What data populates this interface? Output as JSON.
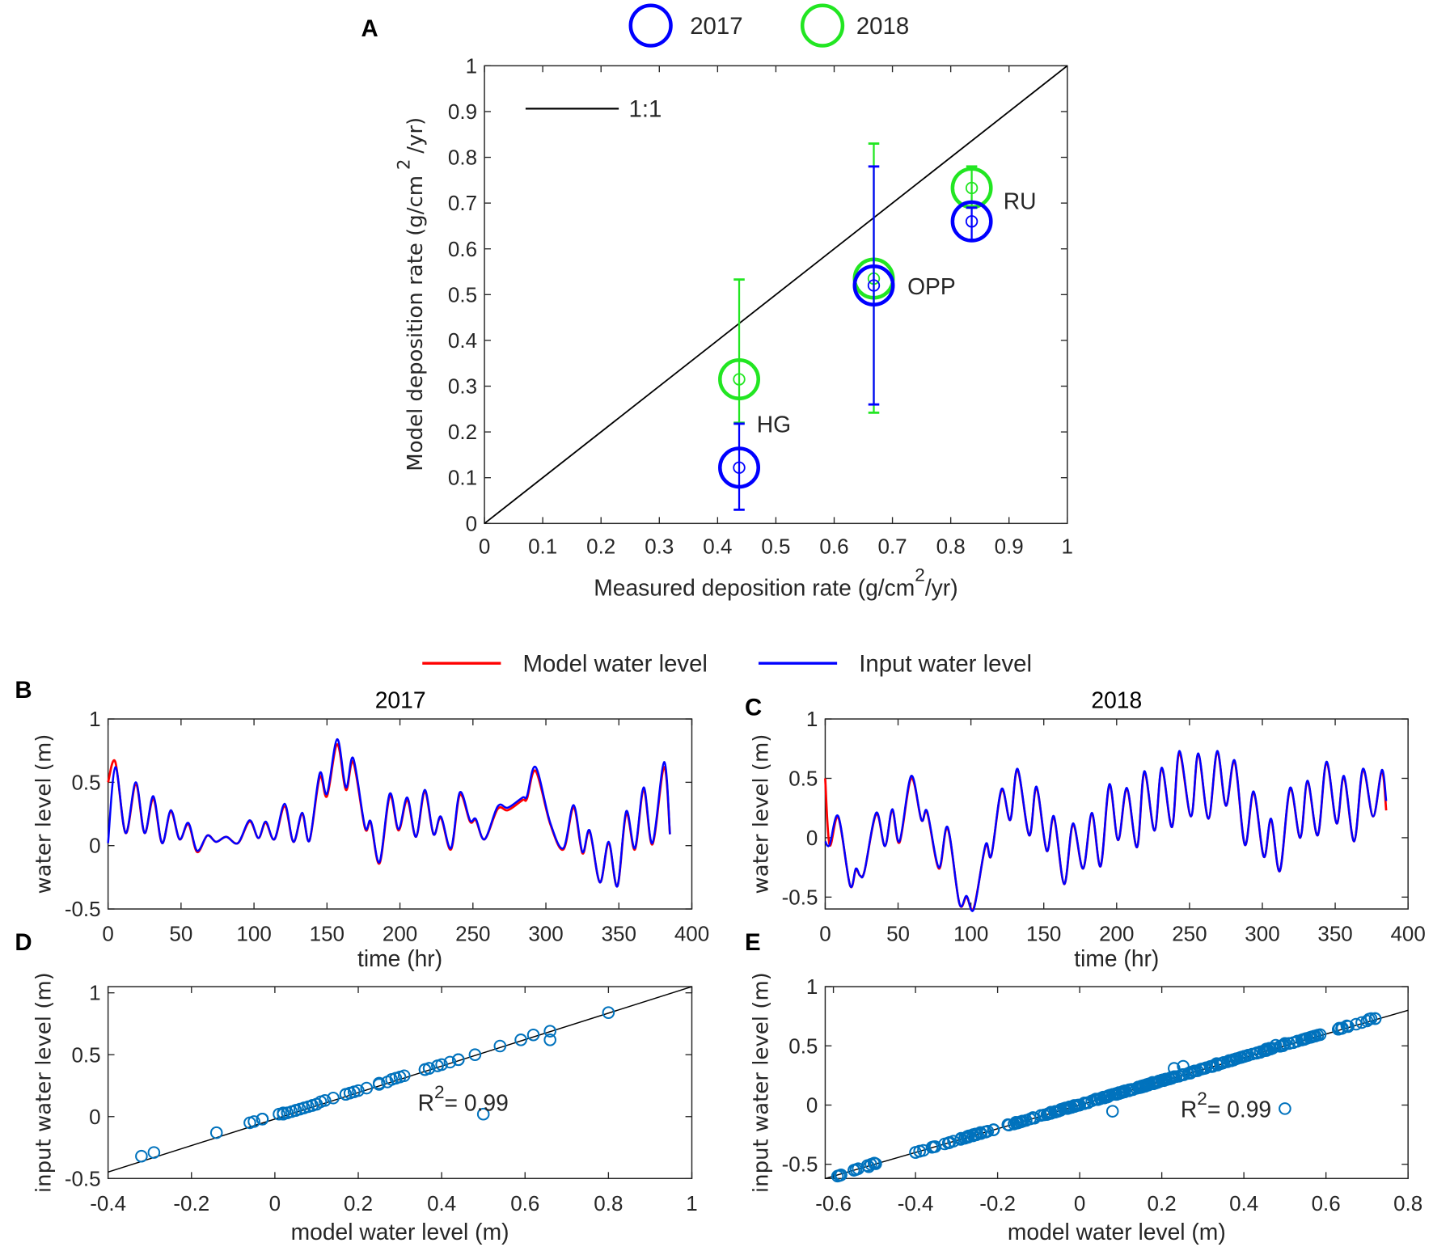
{
  "colors": {
    "y2017": "#0000ff",
    "y2018": "#22e622",
    "model": "#ff0000",
    "input": "#0000ff",
    "scatter": "#0072bd",
    "axis": "#262626"
  },
  "panel_letters": [
    "A",
    "B",
    "C",
    "D",
    "E"
  ],
  "legend_top": {
    "items": [
      "2017",
      "2018"
    ]
  },
  "legend_water": {
    "model": "Model water level",
    "input": "Input water level"
  },
  "chart_data": [
    {
      "panel": "A",
      "type": "scatter",
      "xlabel": "Measured deposition rate (g/cm",
      "xlabel_sup": "2",
      "xlabel_end": "/yr)",
      "ylabel": "Model deposition rate (g/cm",
      "ylabel_sup": "2",
      "ylabel_end": "/yr)",
      "xlim": [
        0,
        1
      ],
      "ylim": [
        0,
        1
      ],
      "xticks": [
        0,
        0.1,
        0.2,
        0.3,
        0.4,
        0.5,
        0.6,
        0.7,
        0.8,
        0.9,
        1
      ],
      "xtick_labels": [
        "0",
        "0.1",
        "0.2",
        "0.3",
        "0.4",
        "0.5",
        "0.6",
        "0.7",
        "0.8",
        "0.9",
        "1"
      ],
      "yticks": [
        0,
        0.1,
        0.2,
        0.3,
        0.4,
        0.5,
        0.6,
        0.7,
        0.8,
        0.9,
        1
      ],
      "ytick_labels": [
        "0",
        "0.1",
        "0.2",
        "0.3",
        "0.4",
        "0.5",
        "0.6",
        "0.7",
        "0.8",
        "0.9",
        "1"
      ],
      "reference_line": {
        "label": "1:1",
        "slope": 1,
        "intercept": 0
      },
      "legend": [
        "2017",
        "2018"
      ],
      "site_labels": [
        "HG",
        "OPP",
        "RU"
      ],
      "points": [
        {
          "site": "HG",
          "series": "2018",
          "measured": 0.437,
          "model": 0.315,
          "err_low": 0.22,
          "err_high": 0.533
        },
        {
          "site": "HG",
          "series": "2017",
          "measured": 0.437,
          "model": 0.122,
          "err_low": 0.03,
          "err_high": 0.218
        },
        {
          "site": "OPP",
          "series": "2018",
          "measured": 0.668,
          "model": 0.535,
          "err_low": 0.242,
          "err_high": 0.83
        },
        {
          "site": "OPP",
          "series": "2017",
          "measured": 0.668,
          "model": 0.52,
          "err_low": 0.26,
          "err_high": 0.78
        },
        {
          "site": "RU",
          "series": "2018",
          "measured": 0.836,
          "model": 0.733,
          "err_low": 0.69,
          "err_high": 0.78
        },
        {
          "site": "RU",
          "series": "2017",
          "measured": 0.836,
          "model": 0.66,
          "err_low": 0.62,
          "err_high": 0.69
        }
      ]
    },
    {
      "panel": "B",
      "type": "line",
      "title": "2017",
      "xlabel": "time (hr)",
      "ylabel": "water level (m)",
      "xlim": [
        0,
        400
      ],
      "ylim": [
        -0.5,
        1
      ],
      "xticks": [
        0,
        50,
        100,
        150,
        200,
        250,
        300,
        350,
        400
      ],
      "xtick_labels": [
        "0",
        "50",
        "100",
        "150",
        "200",
        "250",
        "300",
        "350",
        "400"
      ],
      "yticks": [
        -0.5,
        0,
        0.5,
        1
      ],
      "ytick_labels": [
        "-0.5",
        "0",
        "0.5",
        "1"
      ],
      "t": [
        0,
        5,
        12,
        19,
        25,
        31,
        37,
        43,
        49,
        55,
        61,
        68,
        74,
        81,
        89,
        97,
        103,
        108,
        114,
        121,
        127,
        133,
        138,
        145,
        150,
        157,
        163,
        168,
        176,
        180,
        186,
        193,
        199,
        205,
        211,
        217,
        223,
        228,
        235,
        241,
        248,
        252,
        258,
        267,
        274,
        284,
        287,
        293,
        303,
        312,
        319,
        325,
        330,
        337,
        343,
        349,
        355,
        361,
        367,
        373,
        381,
        385
      ],
      "series": [
        {
          "name": "Model water level",
          "values": [
            0.5,
            0.66,
            0.1,
            0.48,
            0.1,
            0.37,
            0.02,
            0.27,
            0.05,
            0.17,
            -0.05,
            0.08,
            0.03,
            0.07,
            0.02,
            0.19,
            0.06,
            0.18,
            0.05,
            0.31,
            0.03,
            0.25,
            0.04,
            0.54,
            0.39,
            0.8,
            0.44,
            0.66,
            0.14,
            0.18,
            -0.14,
            0.39,
            0.12,
            0.36,
            0.07,
            0.42,
            0.09,
            0.22,
            -0.03,
            0.4,
            0.19,
            0.2,
            0.05,
            0.29,
            0.28,
            0.36,
            0.37,
            0.59,
            0.17,
            -0.03,
            0.3,
            -0.06,
            0.11,
            -0.29,
            0.02,
            -0.32,
            0.25,
            -0.03,
            0.44,
            0.01,
            0.62,
            0.09
          ]
        },
        {
          "name": "Input water level",
          "values": [
            0.02,
            0.62,
            0.1,
            0.5,
            0.1,
            0.39,
            0.02,
            0.28,
            0.05,
            0.18,
            -0.04,
            0.08,
            0.03,
            0.07,
            0.02,
            0.2,
            0.06,
            0.19,
            0.05,
            0.33,
            0.03,
            0.26,
            0.04,
            0.57,
            0.41,
            0.84,
            0.46,
            0.69,
            0.15,
            0.19,
            -0.13,
            0.41,
            0.13,
            0.38,
            0.07,
            0.44,
            0.09,
            0.23,
            -0.02,
            0.42,
            0.2,
            0.21,
            0.05,
            0.31,
            0.3,
            0.38,
            0.39,
            0.62,
            0.18,
            -0.02,
            0.32,
            -0.05,
            0.12,
            -0.29,
            0.03,
            -0.32,
            0.27,
            -0.02,
            0.46,
            0.02,
            0.66,
            0.09
          ]
        }
      ]
    },
    {
      "panel": "C",
      "type": "line",
      "title": "2018",
      "xlabel": "time (hr)",
      "ylabel": "water level (m)",
      "xlim": [
        0,
        400
      ],
      "ylim": [
        -0.6,
        1
      ],
      "xticks": [
        0,
        50,
        100,
        150,
        200,
        250,
        300,
        350,
        400
      ],
      "xtick_labels": [
        "0",
        "50",
        "100",
        "150",
        "200",
        "250",
        "300",
        "350",
        "400"
      ],
      "yticks": [
        -0.5,
        0,
        0.5,
        1
      ],
      "ytick_labels": [
        "-0.5",
        "0",
        "0.5",
        "1"
      ],
      "t": [
        0,
        3,
        9,
        17,
        21,
        24,
        27,
        35,
        41,
        46,
        51,
        59,
        66,
        70,
        78,
        84,
        92,
        97,
        102,
        110,
        114,
        121,
        127,
        132,
        140,
        145,
        152,
        157,
        164,
        170,
        177,
        183,
        189,
        195,
        201,
        207,
        214,
        219,
        226,
        231,
        238,
        243,
        251,
        256,
        263,
        269,
        275,
        281,
        288,
        294,
        301,
        306,
        312,
        319,
        326,
        331,
        338,
        344,
        351,
        356,
        363,
        369,
        376,
        382,
        385
      ],
      "series": [
        {
          "name": "Model water level",
          "values": [
            0.5,
            -0.06,
            0.17,
            -0.4,
            -0.27,
            -0.32,
            -0.28,
            0.2,
            -0.07,
            0.23,
            -0.04,
            0.5,
            0.15,
            0.21,
            -0.26,
            0.08,
            -0.55,
            -0.5,
            -0.59,
            -0.07,
            -0.15,
            0.4,
            0.15,
            0.57,
            0.02,
            0.42,
            -0.11,
            0.17,
            -0.39,
            0.11,
            -0.26,
            0.2,
            -0.24,
            0.44,
            -0.02,
            0.41,
            -0.08,
            0.55,
            0.06,
            0.58,
            0.09,
            0.71,
            0.18,
            0.7,
            0.16,
            0.72,
            0.27,
            0.64,
            -0.06,
            0.38,
            -0.16,
            0.15,
            -0.28,
            0.41,
            0.0,
            0.47,
            0.02,
            0.63,
            0.12,
            0.51,
            -0.03,
            0.57,
            0.18,
            0.56,
            0.23
          ]
        },
        {
          "name": "Input water level",
          "values": [
            -0.03,
            -0.06,
            0.18,
            -0.4,
            -0.26,
            -0.32,
            -0.28,
            0.21,
            -0.07,
            0.24,
            -0.03,
            0.52,
            0.15,
            0.22,
            -0.25,
            0.09,
            -0.55,
            -0.49,
            -0.6,
            -0.06,
            -0.15,
            0.41,
            0.15,
            0.58,
            0.02,
            0.43,
            -0.11,
            0.18,
            -0.39,
            0.12,
            -0.26,
            0.21,
            -0.24,
            0.45,
            -0.02,
            0.42,
            -0.08,
            0.56,
            0.06,
            0.59,
            0.09,
            0.73,
            0.18,
            0.71,
            0.16,
            0.73,
            0.27,
            0.65,
            -0.06,
            0.39,
            -0.16,
            0.16,
            -0.28,
            0.42,
            0.0,
            0.48,
            0.02,
            0.64,
            0.12,
            0.52,
            -0.03,
            0.58,
            0.18,
            0.57,
            0.31
          ]
        }
      ]
    },
    {
      "panel": "D",
      "type": "scatter",
      "source": "2017 model vs input water level",
      "xlabel": "model water level (m)",
      "ylabel": "input water level (m)",
      "xlim": [
        -0.4,
        1
      ],
      "ylim": [
        -0.5,
        1.05
      ],
      "xticks": [
        -0.4,
        -0.2,
        0,
        0.2,
        0.4,
        0.6,
        0.8,
        1
      ],
      "xtick_labels": [
        "-0.4",
        "-0.2",
        "0",
        "0.2",
        "0.4",
        "0.6",
        "0.8",
        "1"
      ],
      "yticks": [
        -0.5,
        0,
        0.5,
        1
      ],
      "ytick_labels": [
        "-0.5",
        "0",
        "0.5",
        "1"
      ],
      "fit": {
        "slope": 1.07,
        "intercept": -0.02
      },
      "r2": {
        "label": "R",
        "sup": "2",
        "value": "= 0.99"
      }
    },
    {
      "panel": "E",
      "type": "scatter",
      "source": "2018 model vs input water level",
      "xlabel": "model water level (m)",
      "ylabel": "input water level (m)",
      "xlim": [
        -0.62,
        0.8
      ],
      "ylim": [
        -0.62,
        1
      ],
      "xticks": [
        -0.6,
        -0.4,
        -0.2,
        0,
        0.2,
        0.4,
        0.6,
        0.8
      ],
      "xtick_labels": [
        "-0.6",
        "-0.4",
        "-0.2",
        "0",
        "0.2",
        "0.4",
        "0.6",
        "0.8"
      ],
      "yticks": [
        -0.5,
        0,
        0.5,
        1
      ],
      "ytick_labels": [
        "-0.5",
        "0",
        "0.5",
        "1"
      ],
      "fit": {
        "slope": 1.0,
        "intercept": 0.0
      },
      "r2": {
        "label": "R",
        "sup": "2",
        "value": "= 0.99"
      }
    }
  ]
}
